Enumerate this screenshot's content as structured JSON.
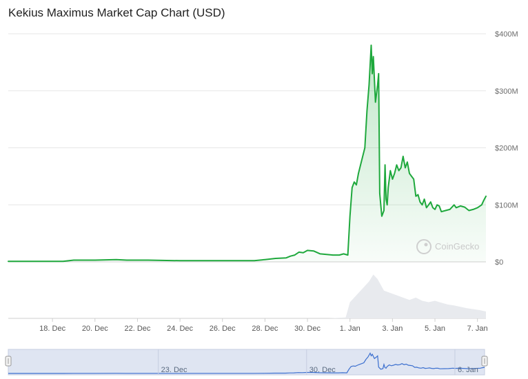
{
  "chart_data": {
    "type": "area",
    "title": "Kekius Maximus Market Cap Chart (USD)",
    "xlabel": "",
    "ylabel": "",
    "y_ticks": [
      "$0",
      "$100M",
      "$200M",
      "$300M",
      "$400M"
    ],
    "y_tick_values": [
      0,
      100,
      200,
      300,
      400
    ],
    "ylim": [
      0,
      400
    ],
    "y_unit": "USD millions",
    "x_ticks": [
      "18. Dec",
      "20. Dec",
      "22. Dec",
      "24. Dec",
      "26. Dec",
      "28. Dec",
      "30. Dec",
      "1. Jan",
      "3. Jan",
      "5. Jan",
      "7. Jan"
    ],
    "x_tick_days": [
      2,
      4,
      6,
      8,
      10,
      12,
      14,
      16,
      18,
      20,
      22
    ],
    "xlim_days": [
      -0.08,
      22.4
    ],
    "x_day_zero": "16. Dec",
    "grid": true,
    "legend": "none",
    "series": [
      {
        "values_x_days": [
          -0.08,
          1.0,
          2.5,
          3.0,
          4.0,
          5.0,
          5.5,
          6.5,
          8.0,
          9.0,
          10.0,
          11.0,
          11.5,
          12.0,
          12.5,
          13.0,
          13.2,
          13.4,
          13.6,
          13.8,
          14.0,
          14.3,
          14.6,
          14.9,
          15.2,
          15.5,
          15.7,
          15.9,
          16.0,
          16.1,
          16.2,
          16.3,
          16.4,
          16.5,
          16.6,
          16.7,
          16.8,
          16.9,
          17.0,
          17.05,
          17.1,
          17.2,
          17.3,
          17.35,
          17.4,
          17.5,
          17.6,
          17.65,
          17.7,
          17.75,
          17.8,
          17.9,
          18.0,
          18.1,
          18.2,
          18.3,
          18.4,
          18.5,
          18.6,
          18.7,
          18.8,
          18.9,
          19.0,
          19.1,
          19.2,
          19.3,
          19.4,
          19.5,
          19.6,
          19.7,
          19.8,
          19.9,
          20.0,
          20.1,
          20.2,
          20.3,
          20.5,
          20.7,
          20.9,
          21.0,
          21.2,
          21.4,
          21.6,
          21.8,
          22.0,
          22.2,
          22.3,
          22.4
        ],
        "values_y": [
          1,
          1,
          1,
          3,
          3,
          4,
          3,
          3,
          2,
          2,
          2,
          2,
          2,
          4,
          6,
          7,
          10,
          12,
          17,
          16,
          20,
          19,
          14,
          13,
          12,
          12,
          14,
          12,
          80,
          130,
          140,
          135,
          155,
          170,
          185,
          200,
          265,
          310,
          380,
          330,
          360,
          280,
          310,
          330,
          120,
          80,
          90,
          170,
          110,
          100,
          130,
          160,
          145,
          155,
          170,
          160,
          165,
          185,
          165,
          175,
          155,
          150,
          145,
          115,
          118,
          105,
          100,
          110,
          95,
          100,
          105,
          95,
          92,
          100,
          98,
          88,
          90,
          92,
          100,
          95,
          98,
          96,
          90,
          92,
          95,
          100,
          108,
          115
        ],
        "color": "#1ea83c"
      }
    ],
    "volume_series": {
      "values_x_days": [
        -0.08,
        1.0,
        3.0,
        5.0,
        7.0,
        9.0,
        11.0,
        13.0,
        14.0,
        15.0,
        15.8,
        16.0,
        16.3,
        16.6,
        16.9,
        17.1,
        17.3,
        17.6,
        17.9,
        18.2,
        18.5,
        18.8,
        19.1,
        19.4,
        19.7,
        20.0,
        20.3,
        20.6,
        20.9,
        21.2,
        21.5,
        21.8,
        22.1,
        22.4
      ],
      "values_rel": [
        0,
        0,
        0,
        0,
        0,
        0,
        0,
        0,
        0,
        0,
        0.02,
        0.35,
        0.5,
        0.65,
        0.8,
        0.95,
        0.85,
        0.6,
        0.55,
        0.5,
        0.45,
        0.4,
        0.45,
        0.38,
        0.35,
        0.38,
        0.34,
        0.3,
        0.28,
        0.25,
        0.22,
        0.2,
        0.18,
        0.15
      ],
      "color": "#e8eaee"
    },
    "navigator": {
      "tick_labels": [
        "23. Dec",
        "30. Dec",
        "6. Jan"
      ],
      "tick_days": [
        7,
        14,
        21
      ]
    },
    "watermark": {
      "text": "CoinGecko"
    },
    "colors": {
      "line": "#1ea83c",
      "area_top": "#1ea83c",
      "grid": "#e6e6e6",
      "navigator_fill": "#dfe5f2",
      "navigator_line": "#3b6fcf"
    }
  }
}
